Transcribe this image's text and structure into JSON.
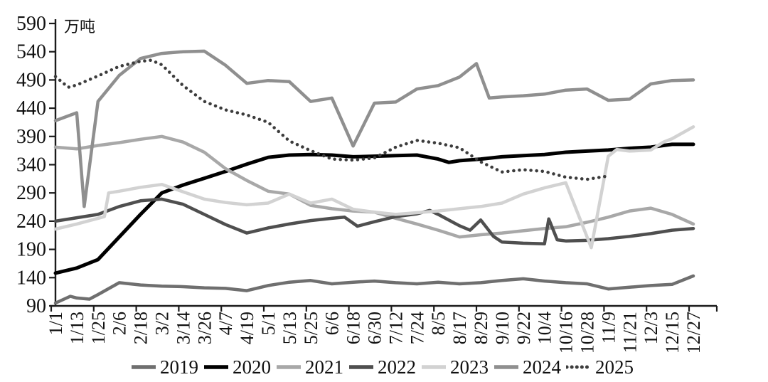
{
  "chart_data": {
    "type": "line",
    "title": "",
    "unit_label": "万吨",
    "xlabel": "",
    "ylabel": "",
    "ylim": [
      90,
      590
    ],
    "yticks": [
      90,
      140,
      190,
      240,
      290,
      340,
      390,
      440,
      490,
      540,
      590
    ],
    "grid": false,
    "legend_position": "bottom",
    "axis_color": "#1a1a1a",
    "categories": [
      "1/1",
      "1/13",
      "1/25",
      "2/6",
      "2/18",
      "3/2",
      "3/14",
      "3/26",
      "4/7",
      "4/19",
      "5/1",
      "5/13",
      "5/25",
      "6/6",
      "6/18",
      "6/30",
      "7/12",
      "7/24",
      "8/5",
      "8/17",
      "8/29",
      "9/10",
      "9/22",
      "10/4",
      "10/16",
      "10/28",
      "11/9",
      "11/21",
      "12/3",
      "12/15",
      "12/27"
    ],
    "series": [
      {
        "name": "2019",
        "color": "#6f6f6f",
        "style": "solid",
        "width": 4.5,
        "points": [
          [
            0,
            95
          ],
          [
            0.7,
            107
          ],
          [
            1,
            104
          ],
          [
            1.6,
            102
          ],
          [
            2,
            110
          ],
          [
            3,
            131
          ],
          [
            4,
            127
          ],
          [
            5,
            125
          ],
          [
            6,
            124
          ],
          [
            7,
            122
          ],
          [
            8,
            121
          ],
          [
            9,
            117
          ],
          [
            10,
            126
          ],
          [
            11,
            132
          ],
          [
            12,
            135
          ],
          [
            13,
            129
          ],
          [
            14,
            132
          ],
          [
            15,
            134
          ],
          [
            16,
            131
          ],
          [
            17,
            129
          ],
          [
            18,
            132
          ],
          [
            19,
            129
          ],
          [
            20,
            131
          ],
          [
            21,
            135
          ],
          [
            22,
            138
          ],
          [
            23,
            134
          ],
          [
            24,
            131
          ],
          [
            25,
            129
          ],
          [
            26,
            120
          ],
          [
            27,
            123
          ],
          [
            28,
            126
          ],
          [
            29,
            128
          ],
          [
            30,
            143
          ]
        ]
      },
      {
        "name": "2020",
        "color": "#000000",
        "style": "solid",
        "width": 5,
        "points": [
          [
            0,
            148
          ],
          [
            1,
            157
          ],
          [
            2,
            172
          ],
          [
            3,
            212
          ],
          [
            4,
            252
          ],
          [
            5,
            290
          ],
          [
            6,
            304
          ],
          [
            7,
            316
          ],
          [
            8,
            328
          ],
          [
            9,
            341
          ],
          [
            10,
            353
          ],
          [
            11,
            357
          ],
          [
            12,
            358
          ],
          [
            13,
            357
          ],
          [
            14,
            354
          ],
          [
            15,
            355
          ],
          [
            16,
            356
          ],
          [
            17,
            357
          ],
          [
            18,
            350
          ],
          [
            18.5,
            344
          ],
          [
            19,
            347
          ],
          [
            20,
            350
          ],
          [
            21,
            354
          ],
          [
            22,
            356
          ],
          [
            23,
            358
          ],
          [
            24,
            362
          ],
          [
            25,
            364
          ],
          [
            26,
            366
          ],
          [
            27,
            369
          ],
          [
            28,
            371
          ],
          [
            29,
            376
          ],
          [
            30,
            376
          ]
        ]
      },
      {
        "name": "2021",
        "color": "#a8a8a8",
        "style": "solid",
        "width": 4.5,
        "points": [
          [
            0,
            371
          ],
          [
            1,
            368
          ],
          [
            2,
            374
          ],
          [
            3,
            379
          ],
          [
            4,
            385
          ],
          [
            5,
            390
          ],
          [
            6,
            380
          ],
          [
            7,
            362
          ],
          [
            8,
            333
          ],
          [
            9,
            312
          ],
          [
            10,
            293
          ],
          [
            11,
            288
          ],
          [
            12,
            268
          ],
          [
            13,
            262
          ],
          [
            14,
            258
          ],
          [
            15,
            256
          ],
          [
            16,
            245
          ],
          [
            17,
            235
          ],
          [
            18,
            224
          ],
          [
            19,
            212
          ],
          [
            20,
            216
          ],
          [
            21,
            219
          ],
          [
            22,
            223
          ],
          [
            23,
            227
          ],
          [
            24,
            230
          ],
          [
            25,
            238
          ],
          [
            26,
            247
          ],
          [
            27,
            258
          ],
          [
            28,
            263
          ],
          [
            29,
            252
          ],
          [
            30,
            235
          ]
        ]
      },
      {
        "name": "2022",
        "color": "#4f4f4f",
        "style": "solid",
        "width": 4.5,
        "points": [
          [
            0,
            240
          ],
          [
            1,
            246
          ],
          [
            2,
            252
          ],
          [
            3,
            266
          ],
          [
            4,
            276
          ],
          [
            5,
            279
          ],
          [
            6,
            270
          ],
          [
            7,
            252
          ],
          [
            8,
            234
          ],
          [
            9,
            219
          ],
          [
            10,
            228
          ],
          [
            11,
            235
          ],
          [
            12,
            241
          ],
          [
            13,
            245
          ],
          [
            13.6,
            247
          ],
          [
            14.2,
            231
          ],
          [
            15,
            239
          ],
          [
            16,
            248
          ],
          [
            17,
            253
          ],
          [
            17.6,
            259
          ],
          [
            18,
            252
          ],
          [
            19,
            232
          ],
          [
            19.5,
            224
          ],
          [
            20,
            242
          ],
          [
            20.6,
            213
          ],
          [
            21,
            203
          ],
          [
            22,
            201
          ],
          [
            23,
            200
          ],
          [
            23.2,
            244
          ],
          [
            23.6,
            207
          ],
          [
            24,
            205
          ],
          [
            25,
            206
          ],
          [
            26,
            209
          ],
          [
            27,
            213
          ],
          [
            28,
            218
          ],
          [
            29,
            224
          ],
          [
            30,
            227
          ]
        ]
      },
      {
        "name": "2023",
        "color": "#d2d2d2",
        "style": "solid",
        "width": 4.5,
        "points": [
          [
            0,
            226
          ],
          [
            1,
            235
          ],
          [
            2,
            245
          ],
          [
            2.3,
            248
          ],
          [
            2.5,
            290
          ],
          [
            3,
            293
          ],
          [
            4,
            300
          ],
          [
            5,
            305
          ],
          [
            6,
            292
          ],
          [
            7,
            279
          ],
          [
            8,
            273
          ],
          [
            9,
            269
          ],
          [
            10,
            272
          ],
          [
            11,
            288
          ],
          [
            12,
            272
          ],
          [
            13,
            279
          ],
          [
            14,
            261
          ],
          [
            15,
            256
          ],
          [
            16,
            252
          ],
          [
            17,
            255
          ],
          [
            18,
            258
          ],
          [
            19,
            262
          ],
          [
            20,
            266
          ],
          [
            21,
            272
          ],
          [
            22,
            288
          ],
          [
            23,
            299
          ],
          [
            24,
            308
          ],
          [
            25.2,
            193
          ],
          [
            26,
            355
          ],
          [
            26.4,
            367
          ],
          [
            27,
            364
          ],
          [
            28,
            366
          ],
          [
            28.6,
            380
          ],
          [
            29,
            386
          ],
          [
            30,
            407
          ]
        ]
      },
      {
        "name": "2024",
        "color": "#8f8f8f",
        "style": "solid",
        "width": 4.5,
        "points": [
          [
            0,
            418
          ],
          [
            1,
            432
          ],
          [
            1.35,
            266
          ],
          [
            2,
            452
          ],
          [
            3,
            498
          ],
          [
            4,
            528
          ],
          [
            5,
            537
          ],
          [
            6,
            540
          ],
          [
            7,
            541
          ],
          [
            8,
            516
          ],
          [
            9,
            484
          ],
          [
            10,
            489
          ],
          [
            11,
            487
          ],
          [
            12,
            452
          ],
          [
            13,
            458
          ],
          [
            14,
            373
          ],
          [
            15,
            449
          ],
          [
            16,
            451
          ],
          [
            17,
            474
          ],
          [
            18,
            480
          ],
          [
            19,
            495
          ],
          [
            19.8,
            519
          ],
          [
            20.4,
            458
          ],
          [
            21,
            460
          ],
          [
            22,
            462
          ],
          [
            23,
            465
          ],
          [
            24,
            472
          ],
          [
            25,
            474
          ],
          [
            26,
            454
          ],
          [
            27,
            456
          ],
          [
            28,
            483
          ],
          [
            29,
            489
          ],
          [
            30,
            490
          ]
        ]
      },
      {
        "name": "2025",
        "color": "#3c3c3c",
        "style": "dotted",
        "width": 4.5,
        "points": [
          [
            0,
            496
          ],
          [
            0.6,
            477
          ],
          [
            1,
            481
          ],
          [
            2,
            497
          ],
          [
            3,
            514
          ],
          [
            4,
            523
          ],
          [
            4.5,
            525
          ],
          [
            5,
            517
          ],
          [
            6,
            480
          ],
          [
            7,
            452
          ],
          [
            8,
            437
          ],
          [
            9,
            428
          ],
          [
            10,
            415
          ],
          [
            11,
            382
          ],
          [
            12,
            365
          ],
          [
            13,
            350
          ],
          [
            14,
            348
          ],
          [
            15,
            352
          ],
          [
            16,
            371
          ],
          [
            17,
            383
          ],
          [
            18,
            378
          ],
          [
            19,
            370
          ],
          [
            20,
            345
          ],
          [
            21,
            327
          ],
          [
            22,
            331
          ],
          [
            23,
            328
          ],
          [
            24,
            318
          ],
          [
            25,
            314
          ],
          [
            26,
            320
          ]
        ]
      }
    ]
  }
}
